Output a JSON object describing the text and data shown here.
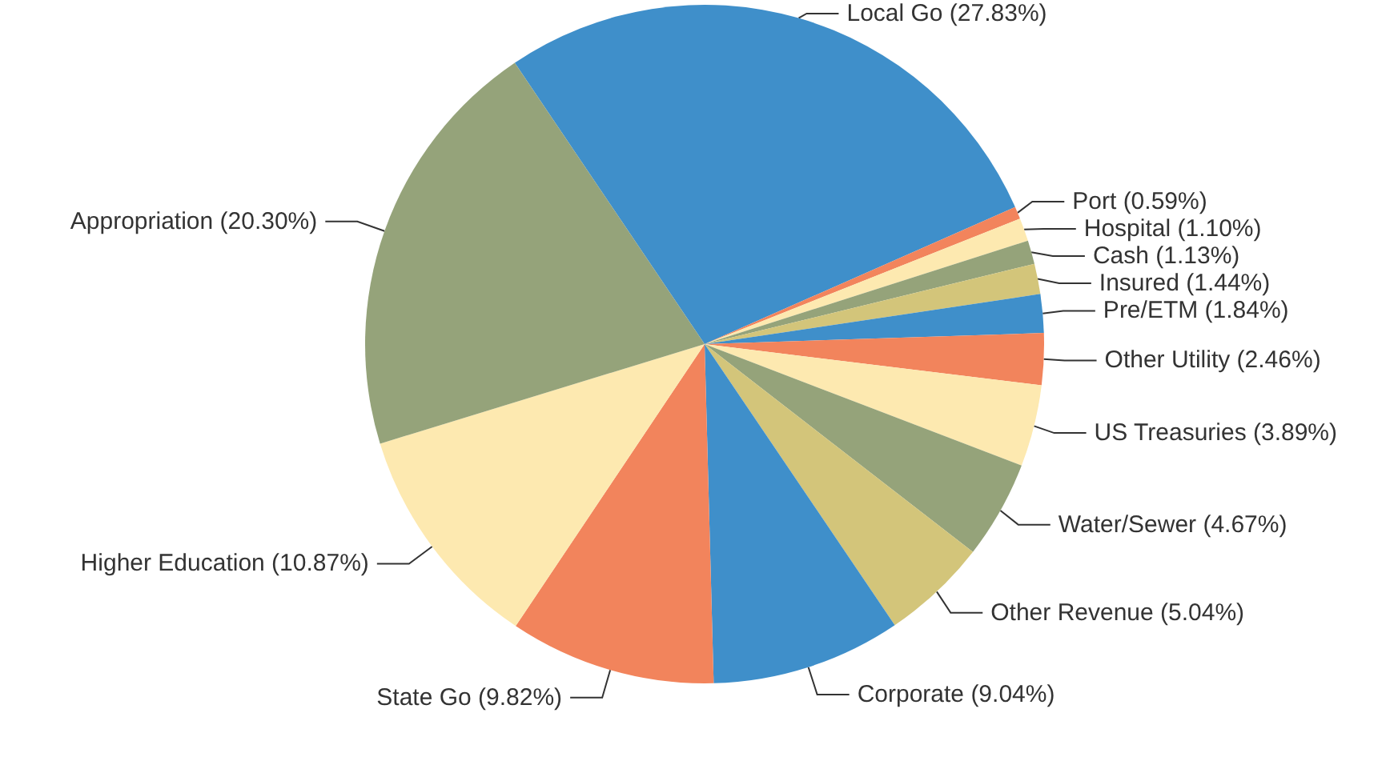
{
  "chart_data": {
    "type": "pie",
    "categories": [
      "Local Go (27.83%)",
      "Port (0.59%)",
      "Hospital (1.10%)",
      "Cash (1.13%)",
      "Insured (1.44%)",
      "Pre/ETM (1.84%)",
      "Other Utility (2.46%)",
      "US Treasuries (3.89%)",
      "Water/Sewer (4.67%)",
      "Other Revenue (5.04%)",
      "Corporate (9.04%)",
      "State Go (9.82%)",
      "Higher Education (10.87%)",
      "Appropriation (20.30%)"
    ],
    "values": [
      27.83,
      0.59,
      1.1,
      1.13,
      1.44,
      1.84,
      2.46,
      3.89,
      4.67,
      5.04,
      9.04,
      9.82,
      10.87,
      20.3
    ],
    "colors": [
      "#3f8fca",
      "#f2845c",
      "#fde9b0",
      "#95a37a",
      "#d3c57a",
      "#3f8fca",
      "#f2845c",
      "#fde9b0",
      "#95a37a",
      "#d3c57a",
      "#3f8fca",
      "#f2845c",
      "#fde9b0",
      "#95a37a"
    ],
    "legend": false
  }
}
